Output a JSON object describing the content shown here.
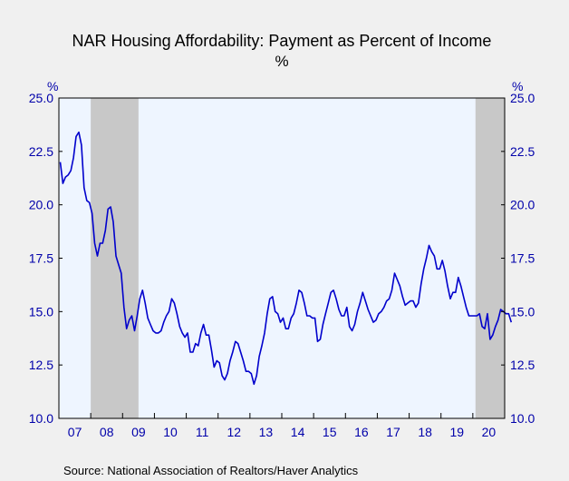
{
  "chart_data": {
    "type": "line",
    "title": "NAR Housing Affordability: Payment as Percent of Income",
    "subtitle": "%",
    "ylabel_left": "%",
    "ylabel_right": "%",
    "source": "Source:  National Association of Realtors/Haver Analytics",
    "ylim": [
      10.0,
      25.0
    ],
    "y_ticks": [
      "10.0",
      "12.5",
      "15.0",
      "17.5",
      "20.0",
      "22.5",
      "25.0"
    ],
    "x_tick_labels": [
      "07",
      "08",
      "09",
      "10",
      "11",
      "12",
      "13",
      "14",
      "15",
      "16",
      "17",
      "18",
      "19",
      "20"
    ],
    "x_range": [
      "2007-01",
      "2020-12"
    ],
    "grid": false,
    "line_color": "#0000cc",
    "axis_text_color": "#0000aa",
    "shade_color": "#c8c8c8",
    "plot_bg": "#eef5ff",
    "recessions": [
      {
        "start": "2008-01",
        "end": "2009-06"
      },
      {
        "start": "2020-02",
        "end": "2020-12"
      }
    ],
    "series": [
      {
        "start": "2007-01",
        "values": [
          22.0,
          21.0,
          21.3,
          21.4,
          21.6,
          22.2,
          23.2,
          23.4,
          22.8,
          20.8,
          20.2,
          20.1,
          19.6,
          18.2,
          17.6,
          18.2,
          18.2,
          18.8,
          19.8,
          19.9,
          19.2,
          17.6,
          17.2,
          16.8,
          15.2,
          14.2,
          14.6,
          14.8,
          14.1,
          14.8,
          15.6,
          16.0,
          15.4,
          14.7,
          14.4,
          14.1,
          14.0,
          14.0,
          14.1,
          14.5,
          14.8,
          15.0,
          15.6,
          15.4,
          14.9,
          14.3,
          14.0,
          13.8,
          14.0,
          13.1,
          13.1,
          13.5,
          13.4,
          14.0,
          14.4,
          13.9,
          13.9,
          13.2,
          12.4,
          12.7,
          12.6,
          12.0,
          11.8,
          12.1,
          12.7,
          13.1,
          13.6,
          13.5,
          13.1,
          12.7,
          12.2,
          12.2,
          12.1,
          11.6,
          12.0,
          12.9,
          13.4,
          14.0,
          14.9,
          15.6,
          15.7,
          15.0,
          14.9,
          14.5,
          14.7,
          14.2,
          14.2,
          14.7,
          14.9,
          15.4,
          16.0,
          15.9,
          15.4,
          14.8,
          14.8,
          14.7,
          14.7,
          13.6,
          13.7,
          14.4,
          14.9,
          15.4,
          15.9,
          16.0,
          15.6,
          15.1,
          14.8,
          14.8,
          15.2,
          14.3,
          14.1,
          14.4,
          15.0,
          15.4,
          15.9,
          15.5,
          15.1,
          14.8,
          14.5,
          14.6,
          14.9,
          15.0,
          15.2,
          15.5,
          15.6,
          16.0,
          16.8,
          16.5,
          16.2,
          15.7,
          15.3,
          15.4,
          15.5,
          15.5,
          15.2,
          15.4,
          16.3,
          17.0,
          17.5,
          18.1,
          17.8,
          17.6,
          17.0,
          17.0,
          17.4,
          16.9,
          16.2,
          15.6,
          15.9,
          15.9,
          16.6,
          16.2,
          15.7,
          15.2,
          14.8,
          14.8,
          14.8,
          14.8,
          14.9,
          14.3,
          14.2,
          14.9,
          13.7,
          13.9,
          14.3,
          14.6,
          15.1,
          15.0,
          14.9,
          14.9,
          14.5
        ]
      }
    ]
  }
}
